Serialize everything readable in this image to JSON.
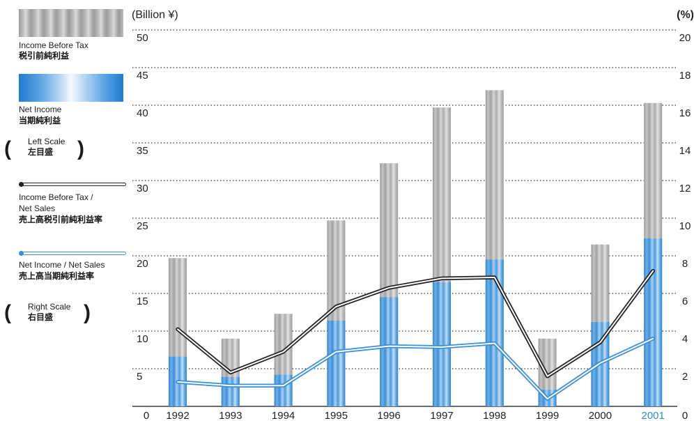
{
  "legend": {
    "income_before_tax": {
      "en": "Income Before Tax",
      "jp": "税引前純利益"
    },
    "net_income": {
      "en": "Net Income",
      "jp": "当期純利益"
    },
    "left_scale": {
      "en": "Left Scale",
      "jp": "左目盛"
    },
    "ibt_ratio": {
      "en1": "Income Before Tax /",
      "en2": "Net Sales",
      "jp": "売上高税引前純利益率"
    },
    "ni_ratio": {
      "en": "Net Income / Net Sales",
      "jp": "売上高当期純利益率"
    },
    "right_scale": {
      "en": "Right Scale",
      "jp": "右目盛"
    },
    "paren_open": "(",
    "paren_close": ")"
  },
  "chart_data": {
    "type": "bar",
    "categories": [
      "1992",
      "1993",
      "1994",
      "1995",
      "1996",
      "1997",
      "1998",
      "1999",
      "2000",
      "2001"
    ],
    "highlight_category": "2001",
    "left_unit": "(Billion ¥)",
    "right_unit": "(%)",
    "left_ylim": [
      0,
      50
    ],
    "left_ticks": [
      "0",
      "5",
      "10",
      "15",
      "20",
      "25",
      "30",
      "35",
      "40",
      "45",
      "50"
    ],
    "right_ylim": [
      0,
      20
    ],
    "right_ticks": [
      "0",
      "2",
      "4",
      "6",
      "8",
      "10",
      "12",
      "14",
      "16",
      "18",
      "20"
    ],
    "grid": true,
    "series": [
      {
        "name": "Income Before Tax",
        "axis": "left",
        "kind": "bar",
        "values": [
          19.7,
          9.0,
          12.3,
          24.7,
          32.3,
          39.7,
          42.0,
          9.0,
          21.5,
          40.3
        ]
      },
      {
        "name": "Net Income",
        "axis": "left",
        "kind": "bar",
        "values": [
          6.6,
          3.9,
          4.2,
          11.4,
          14.5,
          16.5,
          19.5,
          2.2,
          11.2,
          22.3
        ]
      },
      {
        "name": "Income Before Tax / Net Sales",
        "axis": "right",
        "kind": "line",
        "values": [
          4.1,
          1.8,
          2.9,
          5.3,
          6.3,
          6.8,
          6.85,
          1.6,
          3.4,
          7.2
        ]
      },
      {
        "name": "Net Income / Net Sales",
        "axis": "right",
        "kind": "line",
        "values": [
          1.3,
          1.1,
          1.1,
          2.9,
          3.2,
          3.15,
          3.35,
          0.4,
          2.3,
          3.6
        ]
      }
    ],
    "colors": {
      "ibt_bar": "#a9a9a9",
      "ni_bar": "#3a8fd8",
      "ibt_line": "#222222",
      "ni_line": "#3a8fd8",
      "highlight_text": "#2a8ad4",
      "grid": "#333333"
    }
  }
}
